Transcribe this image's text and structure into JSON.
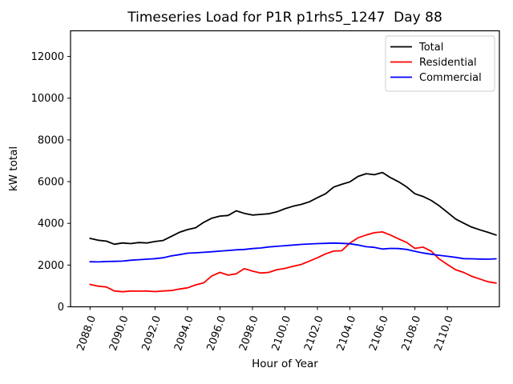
{
  "chart_data": {
    "type": "line",
    "title": "Timeseries Load for P1R p1rhs5_1247  Day 88",
    "xlabel": "Hour of Year",
    "ylabel": "kW total",
    "grid": false,
    "legend_position": "upper right",
    "xlim": [
      2086.8,
      2113.2
    ],
    "ylim": [
      0,
      13230
    ],
    "xticks": [
      2088,
      2090,
      2092,
      2094,
      2096,
      2098,
      2100,
      2102,
      2104,
      2106,
      2108,
      2110
    ],
    "xtick_labels": [
      "2088.0",
      "2090.0",
      "2092.0",
      "2094.0",
      "2096.0",
      "2098.0",
      "2100.0",
      "2102.0",
      "2104.0",
      "2106.0",
      "2108.0",
      "2110.0"
    ],
    "xtick_rotation_deg": 70,
    "yticks": [
      0,
      2000,
      4000,
      6000,
      8000,
      10000,
      12000
    ],
    "x": [
      2088.0,
      2088.5,
      2089.0,
      2089.5,
      2090.0,
      2090.5,
      2091.0,
      2091.5,
      2092.0,
      2092.5,
      2093.0,
      2093.5,
      2094.0,
      2094.5,
      2095.0,
      2095.5,
      2096.0,
      2096.5,
      2097.0,
      2097.5,
      2098.0,
      2098.5,
      2099.0,
      2099.5,
      2100.0,
      2100.5,
      2101.0,
      2101.5,
      2102.0,
      2102.5,
      2103.0,
      2103.5,
      2104.0,
      2104.5,
      2105.0,
      2105.5,
      2106.0,
      2106.5,
      2107.0,
      2107.5,
      2108.0,
      2108.5,
      2109.0,
      2109.5,
      2110.0,
      2110.5,
      2111.0,
      2111.5,
      2112.0,
      2112.5,
      2113.0
    ],
    "series": [
      {
        "name": "Total",
        "color": "#000000",
        "values": [
          3280,
          3190,
          3150,
          3000,
          3060,
          3030,
          3080,
          3060,
          3130,
          3180,
          3370,
          3570,
          3700,
          3790,
          4050,
          4250,
          4350,
          4380,
          4600,
          4480,
          4400,
          4430,
          4460,
          4550,
          4700,
          4820,
          4910,
          5030,
          5230,
          5420,
          5740,
          5870,
          5990,
          6250,
          6380,
          6330,
          6440,
          6190,
          5990,
          5740,
          5420,
          5290,
          5100,
          4840,
          4530,
          4210,
          4010,
          3820,
          3690,
          3570,
          3440
        ]
      },
      {
        "name": "Residential",
        "color": "#ff0000",
        "values": [
          1075,
          990,
          950,
          760,
          720,
          755,
          750,
          755,
          730,
          760,
          780,
          850,
          910,
          1050,
          1150,
          1480,
          1650,
          1520,
          1580,
          1830,
          1710,
          1620,
          1650,
          1780,
          1840,
          1940,
          2030,
          2190,
          2350,
          2540,
          2670,
          2690,
          3060,
          3310,
          3440,
          3550,
          3590,
          3440,
          3250,
          3080,
          2800,
          2860,
          2670,
          2290,
          2030,
          1780,
          1650,
          1460,
          1330,
          1200,
          1140
        ]
      },
      {
        "name": "Commercial",
        "color": "#0000ff",
        "values": [
          2160,
          2150,
          2170,
          2180,
          2190,
          2230,
          2260,
          2280,
          2310,
          2350,
          2440,
          2500,
          2570,
          2590,
          2610,
          2640,
          2670,
          2700,
          2730,
          2750,
          2790,
          2820,
          2870,
          2900,
          2930,
          2960,
          2990,
          3010,
          3030,
          3040,
          3055,
          3040,
          3020,
          2960,
          2880,
          2850,
          2770,
          2800,
          2790,
          2750,
          2660,
          2580,
          2520,
          2470,
          2420,
          2370,
          2310,
          2300,
          2290,
          2280,
          2300
        ]
      }
    ]
  }
}
